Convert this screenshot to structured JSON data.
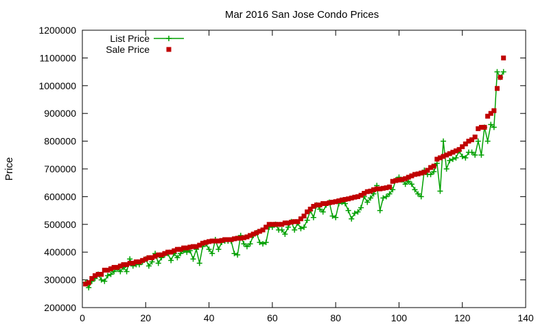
{
  "chart_data": {
    "type": "line",
    "title": "Mar 2016 San Jose Condo Prices",
    "xlabel": "",
    "ylabel": "Price",
    "xlim": [
      0,
      140
    ],
    "ylim": [
      200000,
      1200000
    ],
    "xticks": [
      0,
      20,
      40,
      60,
      80,
      100,
      120,
      140
    ],
    "yticks": [
      200000,
      300000,
      400000,
      500000,
      600000,
      700000,
      800000,
      900000,
      1000000,
      1100000,
      1200000
    ],
    "grid": false,
    "legend_position": "top-left",
    "series": [
      {
        "name": "List Price",
        "color": "#00a000",
        "style": "linespoints",
        "marker": "plus",
        "x": [
          1,
          2,
          3,
          4,
          5,
          6,
          7,
          8,
          9,
          10,
          11,
          12,
          13,
          14,
          15,
          16,
          17,
          18,
          19,
          20,
          21,
          22,
          23,
          24,
          25,
          26,
          27,
          28,
          29,
          30,
          31,
          32,
          33,
          34,
          35,
          36,
          37,
          38,
          39,
          40,
          41,
          42,
          43,
          44,
          45,
          46,
          47,
          48,
          49,
          50,
          51,
          52,
          53,
          54,
          55,
          56,
          57,
          58,
          59,
          60,
          61,
          62,
          63,
          64,
          65,
          66,
          67,
          68,
          69,
          70,
          71,
          72,
          73,
          74,
          75,
          76,
          77,
          78,
          79,
          80,
          81,
          82,
          83,
          84,
          85,
          86,
          87,
          88,
          89,
          90,
          91,
          92,
          93,
          94,
          95,
          96,
          97,
          98,
          99,
          100,
          101,
          102,
          103,
          104,
          105,
          106,
          107,
          108,
          109,
          110,
          111,
          112,
          113,
          114,
          115,
          116,
          117,
          118,
          119,
          120,
          121,
          122,
          123,
          124,
          125,
          126,
          127,
          128,
          129,
          130,
          131,
          132,
          133
        ],
        "values": [
          290000,
          272000,
          295000,
          305000,
          320000,
          300000,
          295000,
          315000,
          320000,
          330000,
          340000,
          330000,
          345000,
          330000,
          375000,
          350000,
          355000,
          355000,
          365000,
          375000,
          350000,
          365000,
          395000,
          360000,
          380000,
          390000,
          395000,
          370000,
          395000,
          380000,
          395000,
          405000,
          400000,
          405000,
          375000,
          410000,
          360000,
          420000,
          430000,
          410000,
          395000,
          445000,
          410000,
          435000,
          440000,
          440000,
          440000,
          395000,
          390000,
          460000,
          430000,
          420000,
          430000,
          460000,
          470000,
          435000,
          430000,
          435000,
          490000,
          490000,
          500000,
          480000,
          480000,
          465000,
          490000,
          510000,
          480000,
          505000,
          485000,
          490000,
          515000,
          550000,
          525000,
          570000,
          555000,
          545000,
          570000,
          580000,
          530000,
          525000,
          575000,
          580000,
          575000,
          550000,
          520000,
          540000,
          545000,
          560000,
          600000,
          580000,
          595000,
          610000,
          640000,
          550000,
          595000,
          600000,
          610000,
          625000,
          660000,
          670000,
          660000,
          645000,
          655000,
          645000,
          625000,
          610000,
          600000,
          695000,
          680000,
          680000,
          690000,
          720000,
          620000,
          800000,
          700000,
          730000,
          735000,
          740000,
          765000,
          745000,
          740000,
          760000,
          760000,
          750000,
          800000,
          750000,
          850000,
          800000,
          860000,
          850000,
          1050000,
          1030000,
          1050000
        ]
      },
      {
        "name": "Sale Price",
        "color": "#c00000",
        "style": "points",
        "marker": "square",
        "x": [
          1,
          2,
          3,
          4,
          5,
          6,
          7,
          8,
          9,
          10,
          11,
          12,
          13,
          14,
          15,
          16,
          17,
          18,
          19,
          20,
          21,
          22,
          23,
          24,
          25,
          26,
          27,
          28,
          29,
          30,
          31,
          32,
          33,
          34,
          35,
          36,
          37,
          38,
          39,
          40,
          41,
          42,
          43,
          44,
          45,
          46,
          47,
          48,
          49,
          50,
          51,
          52,
          53,
          54,
          55,
          56,
          57,
          58,
          59,
          60,
          61,
          62,
          63,
          64,
          65,
          66,
          67,
          68,
          69,
          70,
          71,
          72,
          73,
          74,
          75,
          76,
          77,
          78,
          79,
          80,
          81,
          82,
          83,
          84,
          85,
          86,
          87,
          88,
          89,
          90,
          91,
          92,
          93,
          94,
          95,
          96,
          97,
          98,
          99,
          100,
          101,
          102,
          103,
          104,
          105,
          106,
          107,
          108,
          109,
          110,
          111,
          112,
          113,
          114,
          115,
          116,
          117,
          118,
          119,
          120,
          121,
          122,
          123,
          124,
          125,
          126,
          127,
          128,
          129,
          130,
          131,
          132,
          133
        ],
        "values": [
          285000,
          290000,
          305000,
          315000,
          320000,
          320000,
          335000,
          335000,
          340000,
          345000,
          345000,
          350000,
          355000,
          355000,
          360000,
          360000,
          365000,
          365000,
          370000,
          375000,
          380000,
          380000,
          385000,
          390000,
          390000,
          395000,
          400000,
          400000,
          405000,
          410000,
          410000,
          415000,
          415000,
          418000,
          420000,
          420000,
          425000,
          432000,
          435000,
          438000,
          440000,
          440000,
          440000,
          442000,
          445000,
          445000,
          445000,
          448000,
          450000,
          450000,
          452000,
          455000,
          460000,
          465000,
          470000,
          475000,
          480000,
          490000,
          500000,
          500000,
          500000,
          500000,
          500000,
          505000,
          505000,
          508000,
          510000,
          510000,
          520000,
          530000,
          545000,
          555000,
          565000,
          570000,
          570000,
          575000,
          575000,
          578000,
          580000,
          582000,
          585000,
          588000,
          590000,
          592000,
          595000,
          598000,
          600000,
          605000,
          612000,
          618000,
          620000,
          625000,
          628000,
          628000,
          630000,
          632000,
          635000,
          655000,
          658000,
          660000,
          662000,
          665000,
          670000,
          675000,
          680000,
          682000,
          685000,
          688000,
          695000,
          705000,
          710000,
          735000,
          740000,
          745000,
          750000,
          755000,
          760000,
          765000,
          770000,
          780000,
          790000,
          800000,
          805000,
          815000,
          845000,
          850000,
          850000,
          890000,
          900000,
          910000,
          990000,
          1030000,
          1100000
        ]
      }
    ]
  }
}
